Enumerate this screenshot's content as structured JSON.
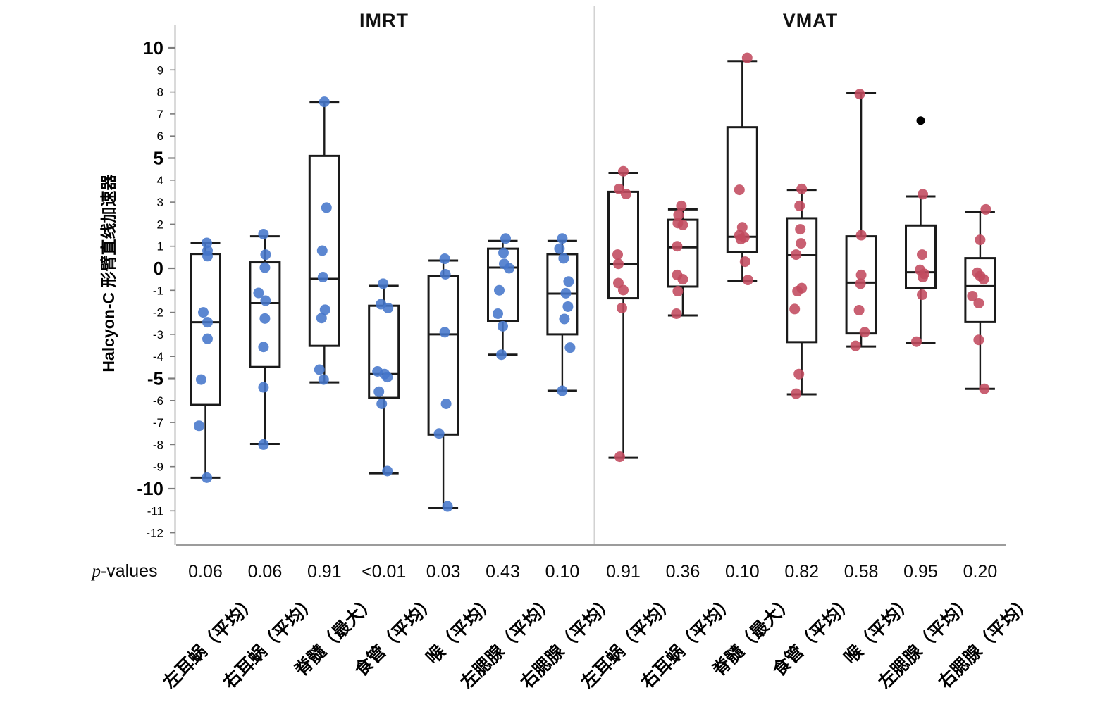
{
  "titles": {
    "left_panel": "IMRT",
    "right_panel": "VMAT"
  },
  "y_axis": {
    "label": "Halcyon-C 形臂直线加速器",
    "ticks": [
      10,
      9,
      8,
      7,
      6,
      5,
      4,
      3,
      2,
      1,
      0,
      -1,
      -2,
      -3,
      -4,
      -5,
      -6,
      -7,
      -8,
      -9,
      -10,
      -11,
      -12
    ],
    "major_ticks": [
      10,
      5,
      0,
      -5,
      -10
    ]
  },
  "p_label": {
    "italic": "p",
    "rest": "-values"
  },
  "colors": {
    "imrt_points": "#4576cb",
    "vmat_points": "#c24a5e",
    "outlier": "#000000",
    "box_stroke": "#1a1a1a",
    "axis_line": "#b4b4b4",
    "separator_line": "#d2d2d2",
    "baseline": "#9c9c9c"
  },
  "chart_data": {
    "type": "box",
    "title": "",
    "ylabel": "Halcyon-C 形臂直线加速器",
    "ylim": [
      -12.6,
      10.5
    ],
    "grid": false,
    "panels": [
      {
        "name": "IMRT",
        "point_color": "#4576cb",
        "groups": [
          {
            "label": "左耳蜗（平均）",
            "p": "0.06",
            "whisker_low": -9.5,
            "q1": -6.2,
            "median": -2.45,
            "q3": 0.65,
            "whisker_high": 1.15,
            "points": [
              [
                1.15,
                2
              ],
              [
                0.8,
                3
              ],
              [
                0.55,
                3
              ],
              [
                -2.0,
                -3
              ],
              [
                -2.45,
                3
              ],
              [
                -3.2,
                3
              ],
              [
                -5.05,
                -6
              ],
              [
                -7.15,
                -9
              ],
              [
                -9.5,
                2
              ]
            ],
            "outliers": []
          },
          {
            "label": "右耳蜗（平均）",
            "p": "0.06",
            "whisker_low": -7.97,
            "q1": -4.48,
            "median": -1.58,
            "q3": 0.27,
            "whisker_high": 1.45,
            "points": [
              [
                1.55,
                -2
              ],
              [
                0.62,
                1
              ],
              [
                0.03,
                0
              ],
              [
                -1.12,
                -9
              ],
              [
                -1.47,
                1
              ],
              [
                -2.28,
                0
              ],
              [
                -3.57,
                -2
              ],
              [
                -5.4,
                -2
              ],
              [
                -8.0,
                -2
              ]
            ],
            "outliers": []
          },
          {
            "label": "脊髓（最大）",
            "p": "0.91",
            "whisker_low": -5.18,
            "q1": -3.52,
            "median": -0.48,
            "q3": 5.1,
            "whisker_high": 7.55,
            "points": [
              [
                7.55,
                0
              ],
              [
                2.75,
                3
              ],
              [
                0.8,
                -3
              ],
              [
                -0.4,
                -2
              ],
              [
                -1.88,
                1
              ],
              [
                -2.26,
                -4
              ],
              [
                -4.6,
                -7
              ],
              [
                -5.05,
                -1
              ]
            ],
            "outliers": []
          },
          {
            "label": "食管（平均）",
            "p": "<0.01",
            "whisker_low": -9.3,
            "q1": -5.88,
            "median": -4.8,
            "q3": -1.7,
            "whisker_high": -0.8,
            "points": [
              [
                -0.7,
                -1
              ],
              [
                -1.63,
                -4
              ],
              [
                -1.8,
                6
              ],
              [
                -4.68,
                -9
              ],
              [
                -4.8,
                1
              ],
              [
                -4.94,
                5
              ],
              [
                -5.6,
                -7
              ],
              [
                -6.15,
                -3
              ],
              [
                -9.2,
                5
              ]
            ],
            "outliers": []
          },
          {
            "label": "喉（平均）",
            "p": "0.03",
            "whisker_low": -10.88,
            "q1": -7.55,
            "median": -3.0,
            "q3": -0.35,
            "whisker_high": 0.35,
            "points": [
              [
                0.43,
                2
              ],
              [
                -0.27,
                3
              ],
              [
                -2.9,
                2
              ],
              [
                -6.15,
                4
              ],
              [
                -7.5,
                -6
              ],
              [
                -10.8,
                6
              ]
            ],
            "outliers": []
          },
          {
            "label": "左腮腺（平均）",
            "p": "0.43",
            "whisker_low": -3.92,
            "q1": -2.39,
            "median": 0.03,
            "q3": 0.89,
            "whisker_high": 1.24,
            "points": [
              [
                1.35,
                4
              ],
              [
                0.7,
                1
              ],
              [
                0.2,
                2
              ],
              [
                0.0,
                9
              ],
              [
                -1.0,
                -5
              ],
              [
                -2.06,
                -7
              ],
              [
                -2.63,
                0
              ],
              [
                -3.92,
                -2
              ]
            ],
            "outliers": []
          },
          {
            "label": "右腮腺（平均）",
            "p": "0.10",
            "whisker_low": -5.56,
            "q1": -3.0,
            "median": -1.15,
            "q3": 0.64,
            "whisker_high": 1.24,
            "points": [
              [
                1.35,
                0
              ],
              [
                0.89,
                -4
              ],
              [
                0.45,
                2
              ],
              [
                -0.6,
                9
              ],
              [
                -1.13,
                5
              ],
              [
                -1.74,
                8
              ],
              [
                -2.3,
                3
              ],
              [
                -3.6,
                11
              ],
              [
                -5.56,
                0
              ]
            ],
            "outliers": []
          }
        ]
      },
      {
        "name": "VMAT",
        "point_color": "#c24a5e",
        "groups": [
          {
            "label": "左耳蜗（平均）",
            "p": "0.91",
            "whisker_low": -8.6,
            "q1": -1.36,
            "median": 0.2,
            "q3": 3.47,
            "whisker_high": 4.33,
            "points": [
              [
                4.4,
                0
              ],
              [
                3.6,
                -6
              ],
              [
                3.37,
                4
              ],
              [
                0.62,
                -8
              ],
              [
                0.2,
                -7
              ],
              [
                -0.67,
                -7
              ],
              [
                -0.99,
                0
              ],
              [
                -1.8,
                -2
              ],
              [
                -8.55,
                -5
              ]
            ],
            "outliers": []
          },
          {
            "label": "右耳蜗（平均）",
            "p": "0.36",
            "whisker_low": -2.14,
            "q1": -0.83,
            "median": 0.95,
            "q3": 2.2,
            "whisker_high": 2.67,
            "points": [
              [
                2.83,
                -2
              ],
              [
                2.42,
                -6
              ],
              [
                2.05,
                -7
              ],
              [
                1.97,
                0
              ],
              [
                1.0,
                -8
              ],
              [
                -0.3,
                -8
              ],
              [
                -0.5,
                0
              ],
              [
                -1.04,
                -7
              ],
              [
                -2.06,
                -9
              ]
            ],
            "outliers": []
          },
          {
            "label": "脊髓（最大）",
            "p": "0.10",
            "whisker_low": -0.59,
            "q1": 0.73,
            "median": 1.43,
            "q3": 6.4,
            "whisker_high": 9.4,
            "points": [
              [
                9.55,
                7
              ],
              [
                3.56,
                -4
              ],
              [
                1.86,
                0
              ],
              [
                1.5,
                -4
              ],
              [
                1.4,
                3
              ],
              [
                1.32,
                -2
              ],
              [
                0.3,
                4
              ],
              [
                -0.53,
                8
              ]
            ],
            "outliers": []
          },
          {
            "label": "食管（平均）",
            "p": "0.82",
            "whisker_low": -5.72,
            "q1": -3.35,
            "median": 0.59,
            "q3": 2.27,
            "whisker_high": 3.56,
            "points": [
              [
                3.6,
                0
              ],
              [
                2.83,
                -3
              ],
              [
                1.77,
                -2
              ],
              [
                1.13,
                -1
              ],
              [
                0.62,
                -8
              ],
              [
                -0.9,
                0
              ],
              [
                -1.04,
                -6
              ],
              [
                -1.85,
                -10
              ],
              [
                -4.8,
                -4
              ],
              [
                -5.69,
                -8
              ]
            ],
            "outliers": []
          },
          {
            "label": "喉（平均）",
            "p": "0.58",
            "whisker_low": -3.55,
            "q1": -2.96,
            "median": -0.65,
            "q3": 1.45,
            "whisker_high": 7.94,
            "points": [
              [
                7.9,
                -2
              ],
              [
                1.5,
                0
              ],
              [
                -0.3,
                0
              ],
              [
                -0.7,
                -1
              ],
              [
                -1.9,
                -3
              ],
              [
                -2.9,
                5
              ],
              [
                -3.52,
                -8
              ]
            ],
            "outliers": []
          },
          {
            "label": "左腮腺（平均）",
            "p": "0.95",
            "whisker_low": -3.4,
            "q1": -0.9,
            "median": -0.18,
            "q3": 1.94,
            "whisker_high": 3.26,
            "points": [
              [
                3.36,
                3
              ],
              [
                0.62,
                2
              ],
              [
                -0.07,
                -1
              ],
              [
                -0.25,
                5
              ],
              [
                -0.4,
                3
              ],
              [
                -1.2,
                2
              ],
              [
                -3.33,
                -6
              ]
            ],
            "outliers": [
              6.7
            ]
          },
          {
            "label": "右腮腺（平均）",
            "p": "0.20",
            "whisker_low": -5.47,
            "q1": -2.44,
            "median": -0.81,
            "q3": 0.46,
            "whisker_high": 2.56,
            "points": [
              [
                2.67,
                8
              ],
              [
                1.29,
                0
              ],
              [
                -0.2,
                -4
              ],
              [
                -0.35,
                0
              ],
              [
                -0.5,
                5
              ],
              [
                -1.26,
                -11
              ],
              [
                -1.58,
                -2
              ],
              [
                -3.25,
                -2
              ],
              [
                -5.47,
                6
              ]
            ],
            "outliers": []
          }
        ]
      }
    ]
  }
}
